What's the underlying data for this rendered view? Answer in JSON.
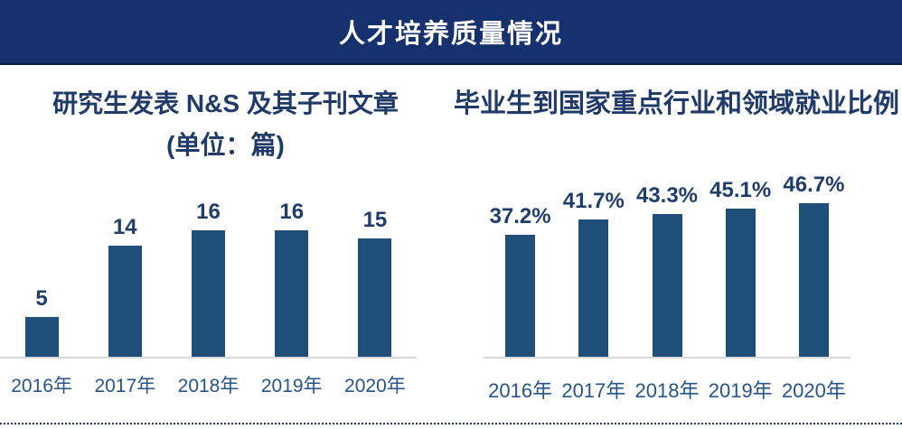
{
  "header": {
    "title": "人才培养质量情况"
  },
  "colors": {
    "header_bg": "#16316D",
    "header_text": "#FFFFFF",
    "bar_fill": "#1F4E79",
    "title_text": "#203A69",
    "value_label_text": "#1F3E6B",
    "axis_label_text": "#27548A",
    "baseline": "#D9D9D9",
    "dotted_divider": "#1F3864"
  },
  "chart_data": [
    {
      "type": "bar",
      "title": "研究生发表 N&S 及其子刊文章",
      "subtitle": "(单位：篇)",
      "categories": [
        "2016年",
        "2017年",
        "2018年",
        "2019年",
        "2020年"
      ],
      "values": [
        5,
        14,
        16,
        16,
        15
      ],
      "value_labels": [
        "5",
        "14",
        "16",
        "16",
        "15"
      ],
      "xlabel": "",
      "ylabel": "",
      "ylim": [
        0,
        18
      ],
      "grid": false,
      "legend": "none",
      "bar_color": "#1F4E79"
    },
    {
      "type": "bar",
      "title": "毕业生到国家重点行业和领域就业比例",
      "subtitle": "",
      "categories": [
        "2016年",
        "2017年",
        "2018年",
        "2019年",
        "2020年"
      ],
      "values": [
        37.2,
        41.7,
        43.3,
        45.1,
        46.7
      ],
      "value_labels": [
        "37.2%",
        "41.7%",
        "43.3%",
        "45.1%",
        "46.7%"
      ],
      "xlabel": "",
      "ylabel": "",
      "ylim": [
        0,
        51
      ],
      "grid": false,
      "legend": "none",
      "bar_color": "#1F4E79"
    }
  ]
}
